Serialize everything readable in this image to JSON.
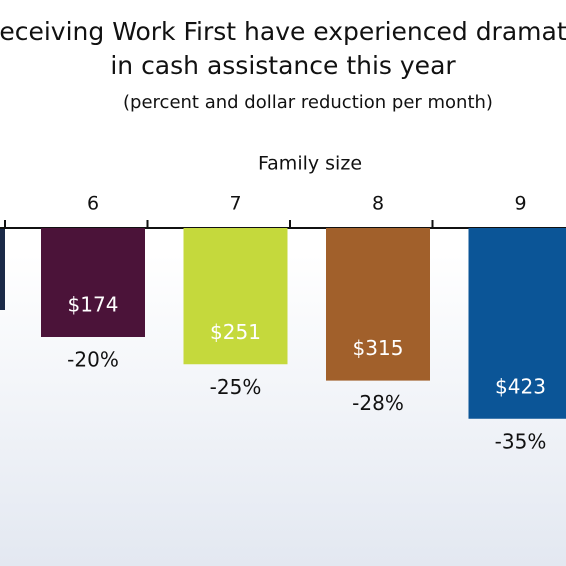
{
  "chart_data": {
    "type": "bar",
    "title_lines": [
      "eceiving Work First have experienced dramat",
      "in cash assistance this year"
    ],
    "subtitle": "(percent and dollar reduction per month)",
    "x_label": "Family size",
    "categories": [
      "6",
      "7",
      "8",
      "9"
    ],
    "values": [
      -20,
      -25,
      -28,
      -35
    ],
    "value_labels": [
      "-20%",
      "-25%",
      "-28%",
      "-35%"
    ],
    "amounts": [
      174,
      251,
      315,
      423
    ],
    "amount_labels": [
      "$174",
      "$251",
      "$315",
      "$423"
    ],
    "colors": [
      "#4b1339",
      "#c5d93c",
      "#a1602b",
      "#0b5597"
    ],
    "ylim": [
      0,
      -40
    ]
  }
}
